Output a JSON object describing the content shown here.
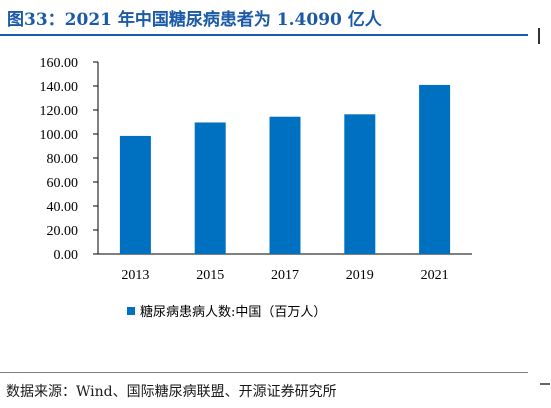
{
  "title": "图33：2021 年中国糖尿病患者为 1.4090 亿人",
  "source": "数据来源：Wind、国际糖尿病联盟、开源证券研究所",
  "chart_data": {
    "type": "bar",
    "categories": [
      "2013",
      "2015",
      "2017",
      "2019",
      "2021"
    ],
    "series": [
      {
        "name": "糖尿病患病人数:中国（百万人）",
        "values": [
          98.4,
          109.6,
          114.4,
          116.4,
          140.9
        ],
        "color": "#0070c0"
      }
    ],
    "y_ticks": [
      "0.00",
      "20.00",
      "40.00",
      "60.00",
      "80.00",
      "100.00",
      "120.00",
      "140.00",
      "160.00"
    ],
    "ylim": [
      0,
      160
    ],
    "grid": false,
    "legend_position": "bottom"
  }
}
